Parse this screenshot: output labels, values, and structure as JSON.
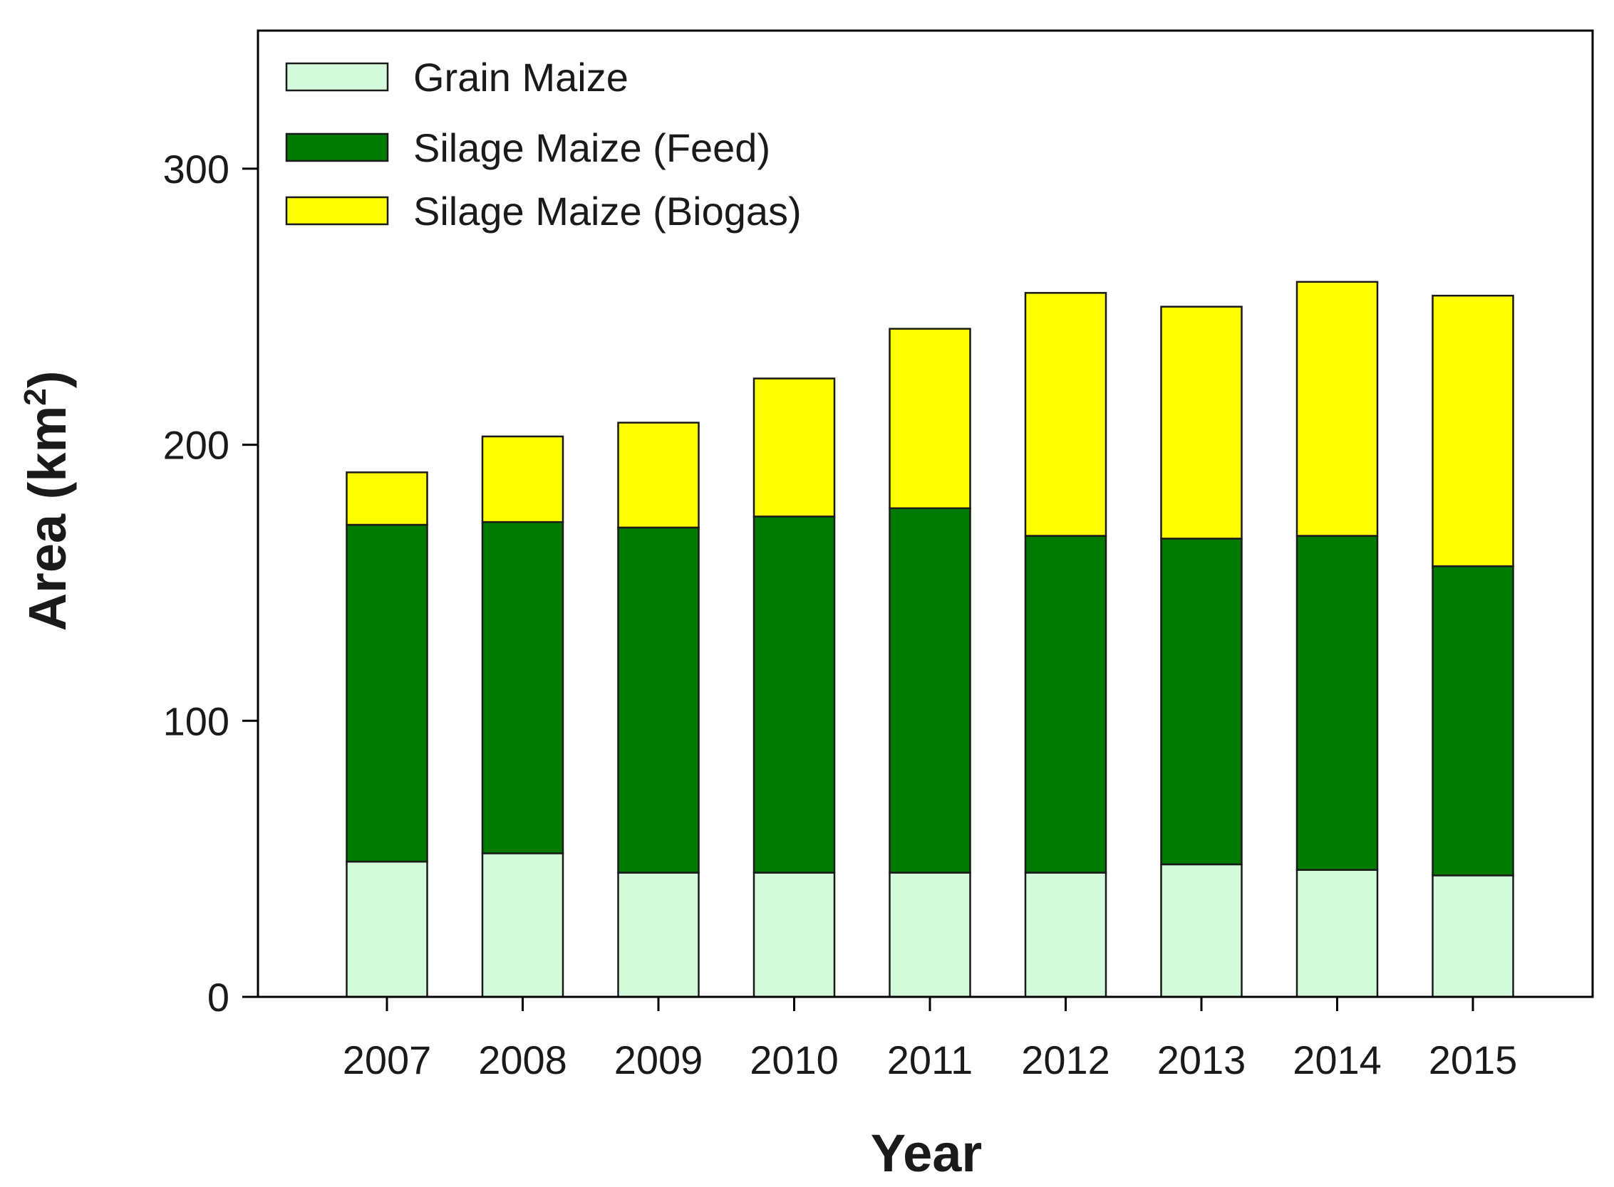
{
  "chart_data": {
    "type": "bar",
    "stacked": true,
    "title": "",
    "xlabel": "Year",
    "ylabel": "Area (km²)",
    "ylabel_main": "Area (km",
    "ylabel_superscript": "2",
    "ylabel_close": ")",
    "ylim": [
      0,
      350
    ],
    "yticks": [
      0,
      100,
      200,
      300
    ],
    "grid": false,
    "legend_position": "top-left",
    "categories": [
      "2007",
      "2008",
      "2009",
      "2010",
      "2011",
      "2012",
      "2013",
      "2014",
      "2015"
    ],
    "series": [
      {
        "name": "Grain Maize",
        "color": "#d4fadc",
        "values": [
          49,
          52,
          45,
          45,
          45,
          45,
          48,
          46,
          44
        ]
      },
      {
        "name": "Silage Maize (Feed)",
        "color": "#007a00",
        "values": [
          122,
          120,
          125,
          129,
          132,
          122,
          118,
          121,
          112
        ]
      },
      {
        "name": "Silage Maize (Biogas)",
        "color": "#ffff00",
        "values": [
          19,
          31,
          38,
          50,
          65,
          88,
          84,
          92,
          98
        ]
      }
    ]
  }
}
